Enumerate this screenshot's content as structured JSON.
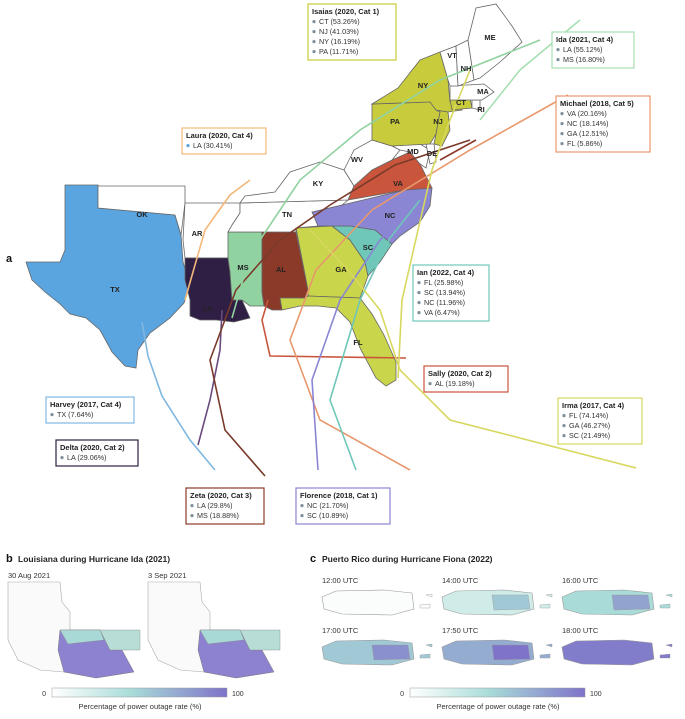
{
  "panel_a": {
    "letter": "a",
    "colors": {
      "harvey": "#5aa5e0",
      "laura": "#f3b87a",
      "ida": "#90d2a0",
      "delta": "#2f1f44",
      "zeta": "#8b3a2a",
      "sally": "#c9553d",
      "michael": "#e8986c",
      "florence": "#8a86d4",
      "ian": "#6fc7b9",
      "irma": "#c9d54a",
      "isaias": "#d7d85e",
      "ne_counties": "#c8cc3c"
    },
    "state_labels": [
      "TX",
      "OK",
      "AR",
      "LA",
      "MS",
      "AL",
      "GA",
      "FL",
      "SC",
      "NC",
      "TN",
      "KY",
      "VA",
      "WV",
      "MD",
      "DE",
      "NJ",
      "PA",
      "NY",
      "CT",
      "RI",
      "MA",
      "NH",
      "VT",
      "ME"
    ],
    "boxes": {
      "isaias": {
        "title": "Isaias (2020, Cat 1)",
        "items": [
          "CT (53.26%)",
          "NJ (41.03%)",
          "NY (16.19%)",
          "PA (11.71%)"
        ]
      },
      "ida": {
        "title": "Ida (2021, Cat 4)",
        "items": [
          "LA (55.12%)",
          "MS (16.80%)"
        ]
      },
      "michael": {
        "title": "Michael (2018, Cat 5)",
        "items": [
          "VA (20.16%)",
          "NC (18.14%)",
          "GA (12.51%)",
          "FL (5.86%)"
        ]
      },
      "laura": {
        "title": "Laura (2020, Cat 4)",
        "items": [
          "LA (30.41%)"
        ]
      },
      "ian": {
        "title": "Ian (2022, Cat 4)",
        "items": [
          "FL (25.98%)",
          "SC (13.94%)",
          "NC (11.96%)",
          "VA (6.47%)"
        ]
      },
      "sally": {
        "title": "Sally (2020, Cat 2)",
        "items": [
          "AL (19.18%)"
        ]
      },
      "harvey": {
        "title": "Harvey (2017, Cat 4)",
        "items": [
          "TX (7.64%)"
        ]
      },
      "delta": {
        "title": "Delta (2020, Cat 2)",
        "items": [
          "LA (29.06%)"
        ]
      },
      "zeta": {
        "title": "Zeta (2020, Cat 3)",
        "items": [
          "LA (29.8%)",
          "MS (18.88%)"
        ]
      },
      "florence": {
        "title": "Florence (2018, Cat 1)",
        "items": [
          "NC (21.70%)",
          "SC (10.89%)"
        ]
      },
      "irma": {
        "title": "Irma (2017, Cat 4)",
        "items": [
          "FL (74.14%)",
          "GA (46.27%)",
          "SC (21.49%)"
        ]
      }
    }
  },
  "panel_b": {
    "letter": "b",
    "title": "Louisiana during Hurricane Ida (2021)",
    "dates": [
      "30 Aug 2021",
      "3 Sep 2021"
    ],
    "legend": {
      "min": "0",
      "max": "100",
      "label": "Percentage of power outage rate (%)"
    }
  },
  "panel_c": {
    "letter": "c",
    "title": "Puerto Rico during Hurricane Fiona (2022)",
    "times": [
      "12:00 UTC",
      "14:00 UTC",
      "16:00 UTC",
      "17:00 UTC",
      "17:50 UTC",
      "18:00 UTC"
    ],
    "legend": {
      "min": "0",
      "max": "100",
      "label": "Percentage of power outage rate (%)"
    }
  }
}
